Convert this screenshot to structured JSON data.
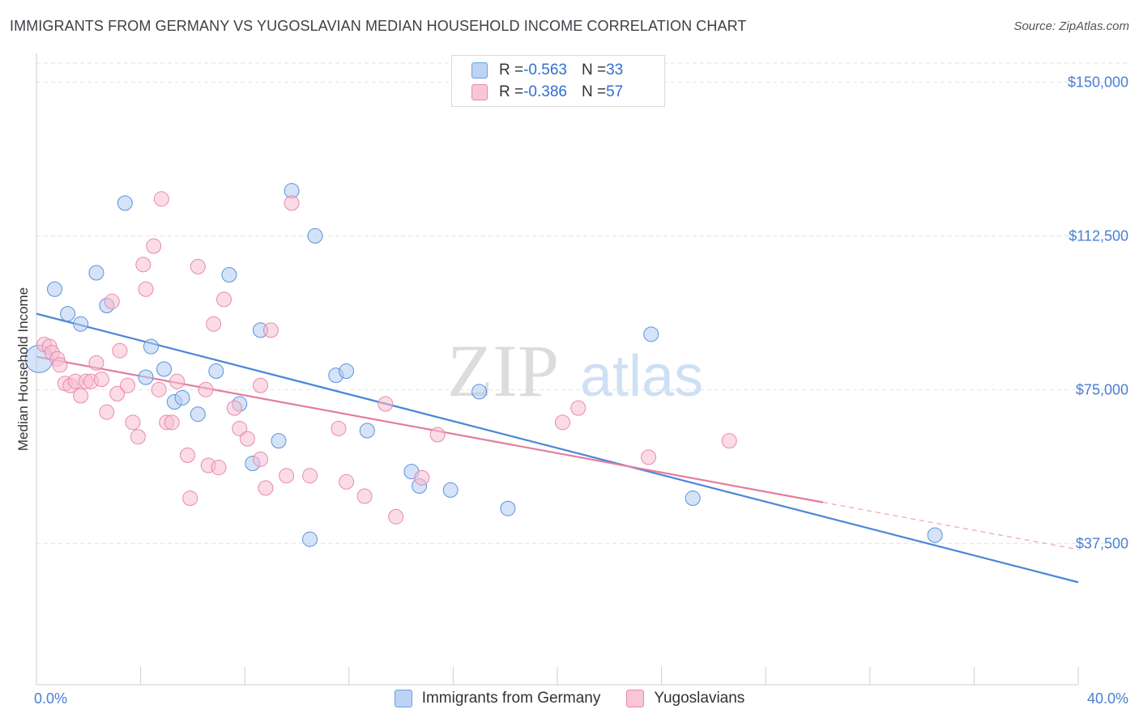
{
  "title": "IMMIGRANTS FROM GERMANY VS YUGOSLAVIAN MEDIAN HOUSEHOLD INCOME CORRELATION CHART",
  "source": "Source: ZipAtlas.com",
  "watermark": {
    "zip": "ZIP",
    "atlas": "atlas"
  },
  "legend": {
    "rows": [
      {
        "r_label": "R = ",
        "r_value": "-0.563",
        "n_label": "N = ",
        "n_value": "33"
      },
      {
        "r_label": "R = ",
        "r_value": "-0.386",
        "n_label": "N = ",
        "n_value": "57"
      }
    ]
  },
  "chart_data": {
    "type": "scatter",
    "title": "IMMIGRANTS FROM GERMANY VS YUGOSLAVIAN MEDIAN HOUSEHOLD INCOME CORRELATION CHART",
    "xlabel": "",
    "ylabel": "Median Household Income",
    "xlim": [
      0,
      40
    ],
    "ylim": [
      3000,
      157000
    ],
    "x_tick_labels": [
      "0.0%",
      "40.0%"
    ],
    "y_ticks": [
      37500,
      75000,
      112500,
      150000
    ],
    "y_tick_labels": [
      "$37,500",
      "$75,000",
      "$112,500",
      "$150,000"
    ],
    "colors": {
      "germany": "#4a86d8",
      "yugoslavians": "#e47da0"
    },
    "series": [
      {
        "name": "Immigrants from Germany",
        "r": -0.563,
        "n": 33,
        "trend": {
          "x0": 0,
          "y0": 93500,
          "x1": 40,
          "y1": 28000
        },
        "points": [
          [
            0.1,
            82500
          ],
          [
            0.7,
            99500
          ],
          [
            1.2,
            93500
          ],
          [
            1.7,
            91000
          ],
          [
            2.3,
            103500
          ],
          [
            2.7,
            95500
          ],
          [
            3.4,
            120500
          ],
          [
            4.2,
            78000
          ],
          [
            4.4,
            85500
          ],
          [
            4.9,
            80000
          ],
          [
            5.3,
            72000
          ],
          [
            5.6,
            73000
          ],
          [
            6.2,
            69000
          ],
          [
            6.9,
            79500
          ],
          [
            7.4,
            103000
          ],
          [
            7.8,
            71500
          ],
          [
            8.3,
            57000
          ],
          [
            8.6,
            89500
          ],
          [
            9.3,
            62500
          ],
          [
            9.8,
            123500
          ],
          [
            10.5,
            38500
          ],
          [
            10.7,
            112500
          ],
          [
            11.5,
            78500
          ],
          [
            11.9,
            79500
          ],
          [
            12.7,
            65000
          ],
          [
            14.4,
            55000
          ],
          [
            14.7,
            51500
          ],
          [
            15.9,
            50500
          ],
          [
            17.0,
            74500
          ],
          [
            18.1,
            46000
          ],
          [
            23.6,
            88500
          ],
          [
            25.2,
            48500
          ],
          [
            34.5,
            39500
          ]
        ]
      },
      {
        "name": "Yugoslavians",
        "r": -0.386,
        "n": 57,
        "trend": {
          "x0": 0,
          "y0": 83000,
          "x1": 30.2,
          "y1": 47500
        },
        "trend_dashed": {
          "x0": 30.2,
          "y0": 47500,
          "x1": 40,
          "y1": 36000
        },
        "points": [
          [
            0.3,
            86000
          ],
          [
            0.5,
            85500
          ],
          [
            0.6,
            84000
          ],
          [
            0.8,
            82500
          ],
          [
            0.9,
            81000
          ],
          [
            1.1,
            76500
          ],
          [
            1.3,
            76000
          ],
          [
            1.5,
            77000
          ],
          [
            1.7,
            73500
          ],
          [
            1.9,
            77000
          ],
          [
            2.1,
            77000
          ],
          [
            2.3,
            81500
          ],
          [
            2.5,
            77500
          ],
          [
            2.7,
            69500
          ],
          [
            2.9,
            96500
          ],
          [
            3.1,
            74000
          ],
          [
            3.2,
            84500
          ],
          [
            3.5,
            76000
          ],
          [
            3.7,
            67000
          ],
          [
            3.9,
            63500
          ],
          [
            4.1,
            105500
          ],
          [
            4.2,
            99500
          ],
          [
            4.5,
            110000
          ],
          [
            4.7,
            75000
          ],
          [
            4.8,
            121500
          ],
          [
            5.0,
            67000
          ],
          [
            5.2,
            67000
          ],
          [
            5.4,
            77000
          ],
          [
            5.8,
            59000
          ],
          [
            5.9,
            48500
          ],
          [
            6.2,
            105000
          ],
          [
            6.5,
            75000
          ],
          [
            6.6,
            56500
          ],
          [
            6.8,
            91000
          ],
          [
            7.0,
            56000
          ],
          [
            7.2,
            97000
          ],
          [
            7.6,
            70500
          ],
          [
            7.8,
            65500
          ],
          [
            8.1,
            63000
          ],
          [
            8.6,
            58000
          ],
          [
            8.6,
            76000
          ],
          [
            8.8,
            51000
          ],
          [
            9.0,
            89500
          ],
          [
            9.6,
            54000
          ],
          [
            9.8,
            120500
          ],
          [
            10.5,
            54000
          ],
          [
            11.6,
            65500
          ],
          [
            11.9,
            52500
          ],
          [
            12.6,
            49000
          ],
          [
            13.4,
            71500
          ],
          [
            13.8,
            44000
          ],
          [
            14.8,
            53500
          ],
          [
            15.4,
            64000
          ],
          [
            20.2,
            67000
          ],
          [
            20.8,
            70500
          ],
          [
            23.5,
            58500
          ],
          [
            26.6,
            62500
          ]
        ]
      }
    ]
  }
}
